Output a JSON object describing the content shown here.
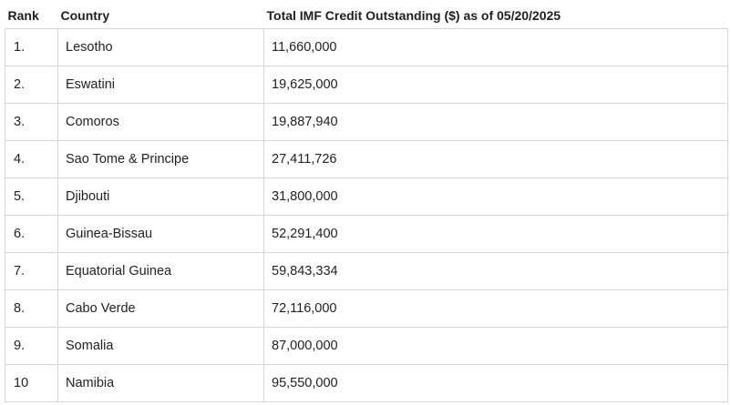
{
  "table": {
    "headers": {
      "rank": "Rank",
      "country": "Country",
      "credit": "Total IMF Credit Outstanding ($) as of 05/20/2025"
    },
    "rows": [
      {
        "rank": "1.",
        "country": "Lesotho",
        "credit": "11,660,000"
      },
      {
        "rank": "2.",
        "country": "Eswatini",
        "credit": "19,625,000"
      },
      {
        "rank": "3.",
        "country": "Comoros",
        "credit": "19,887,940"
      },
      {
        "rank": "4.",
        "country": "Sao Tome & Principe",
        "credit": "27,411,726"
      },
      {
        "rank": "5.",
        "country": "Djibouti",
        "credit": "31,800,000"
      },
      {
        "rank": "6.",
        "country": "Guinea-Bissau",
        "credit": "52,291,400"
      },
      {
        "rank": "7.",
        "country": "Equatorial Guinea",
        "credit": "59,843,334"
      },
      {
        "rank": "8.",
        "country": "Cabo Verde",
        "credit": "72,116,000"
      },
      {
        "rank": "9.",
        "country": "Somalia",
        "credit": "87,000,000"
      },
      {
        "rank": "10",
        "country": "Namibia",
        "credit": "95,550,000"
      }
    ]
  }
}
